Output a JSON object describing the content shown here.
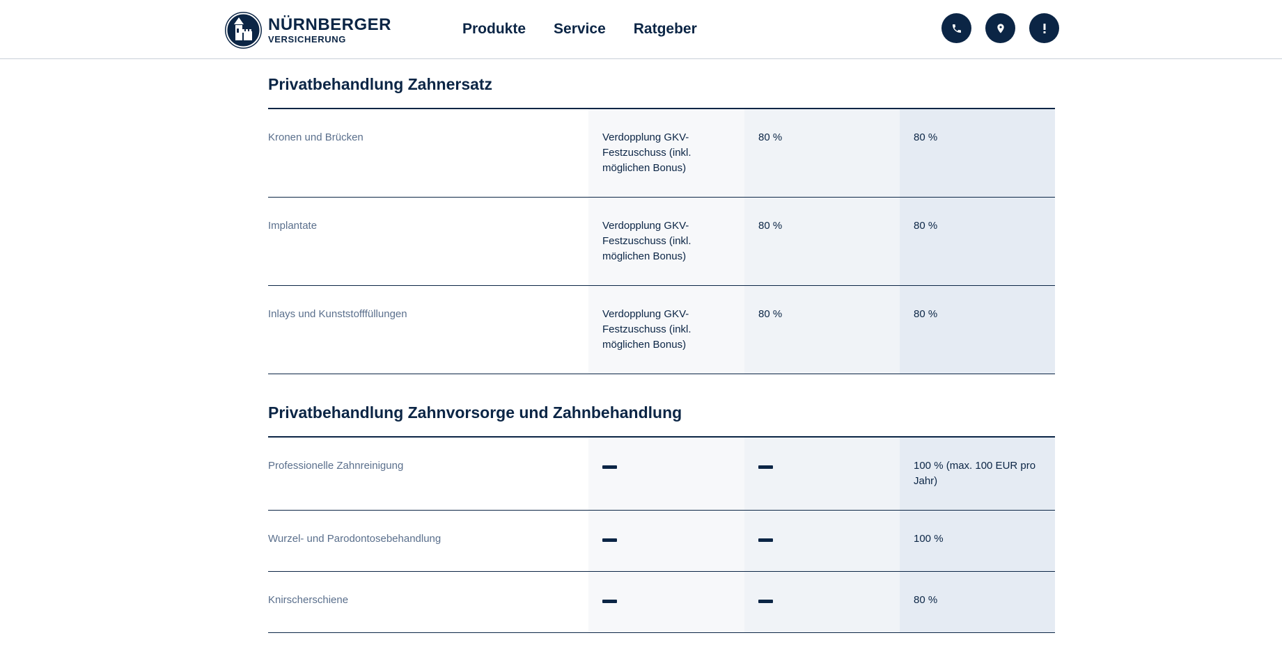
{
  "header": {
    "logo_brand": "NÜRNBERGER",
    "logo_sub": "VERSICHERUNG",
    "nav": [
      "Produkte",
      "Service",
      "Ratgeber"
    ],
    "icons": [
      "phone-icon",
      "location-pin-icon",
      "exclamation-icon"
    ]
  },
  "sections": [
    {
      "title": "Privatbehandlung Zahnersatz",
      "rows": [
        {
          "label": "Kronen und Brücken",
          "col2": "Verdopplung GKV-Festzuschuss (inkl. möglichen Bonus)",
          "col3": "80 %",
          "col4": "80 %"
        },
        {
          "label": "Implantate",
          "col2": "Verdopplung GKV-Festzuschuss (inkl. möglichen Bonus)",
          "col3": "80 %",
          "col4": "80 %"
        },
        {
          "label": "Inlays und Kunststofffüllungen",
          "col2": "Verdopplung GKV-Festzuschuss (inkl. möglichen Bonus)",
          "col3": "80 %",
          "col4": "80 %"
        }
      ]
    },
    {
      "title": "Privatbehandlung Zahnvorsorge und Zahnbehandlung",
      "rows": [
        {
          "label": "Professionelle Zahnreinigung",
          "col2": "—",
          "col3": "—",
          "col4": "100 % (max. 100 EUR pro Jahr)"
        },
        {
          "label": "Wurzel- und Parodontosebehandlung",
          "col2": "—",
          "col3": "—",
          "col4": "100 %"
        },
        {
          "label": "Knirscherschiene",
          "col2": "—",
          "col3": "—",
          "col4": "80 %"
        }
      ]
    }
  ],
  "colors": {
    "navy": "#0b2545",
    "label_gray": "#5a6f8c",
    "col2_bg": "#f7f8fa",
    "col3_bg": "#f0f3f7",
    "col4_bg": "#e5ebf3"
  }
}
